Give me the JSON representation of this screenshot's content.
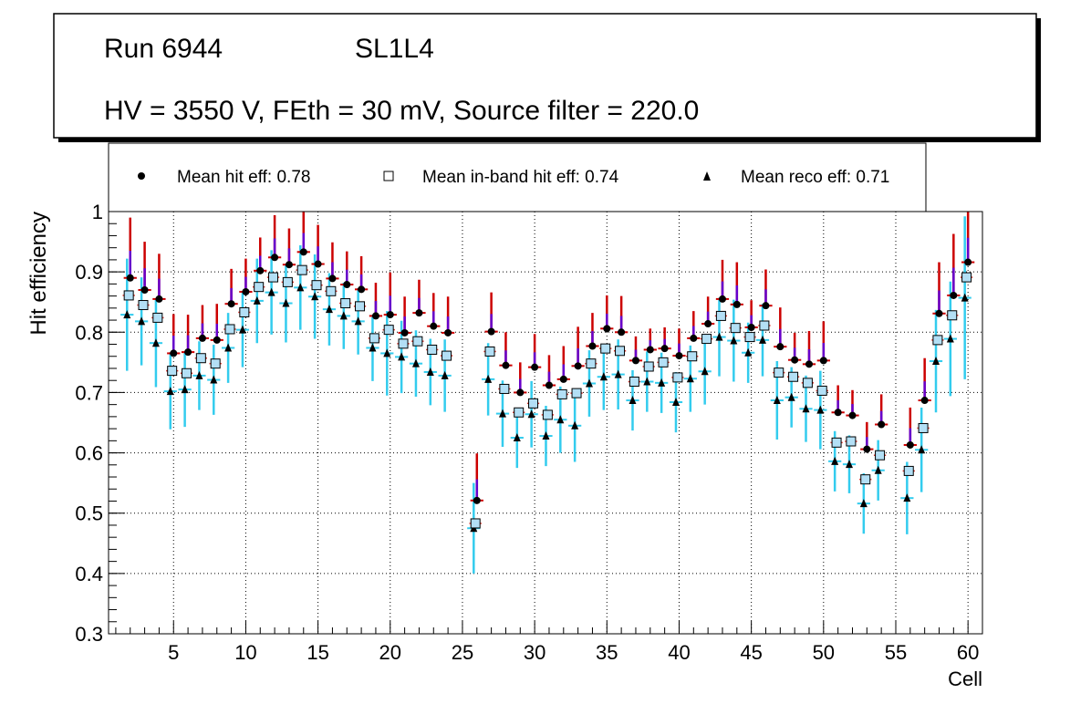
{
  "header": {
    "run": "Run 6944",
    "layer": "SL1L4",
    "conditions": "HV = 3550 V, FEth = 30 mV, Source filter = 220.0"
  },
  "legend": {
    "hit": "Mean hit  eff: 0.78",
    "inband": "Mean in-band hit eff: 0.74",
    "reco": "Mean reco eff: 0.71"
  },
  "colors": {
    "hit_marker": "#000000",
    "hit_err_up": "#cc0000",
    "hit_err_low": "#6600cc",
    "inband_fill": "#b3dff5",
    "inband_err": "#d9322a",
    "reco_err": "#33ccee",
    "reco_marker": "#000000"
  },
  "chart_data": {
    "type": "scatter",
    "title": "",
    "xlabel": "Cell",
    "ylabel": "Hit efficiency",
    "xlim": [
      0.5,
      61
    ],
    "ylim": [
      0.3,
      1.0
    ],
    "xticks": [
      5,
      10,
      15,
      20,
      25,
      30,
      35,
      40,
      45,
      50,
      55,
      60
    ],
    "yticks": [
      0.3,
      0.4,
      0.5,
      0.6,
      0.7,
      0.8,
      0.9,
      1.0
    ],
    "grid": true,
    "legend_position": "top",
    "x": [
      2,
      3,
      4,
      5,
      6,
      7,
      8,
      9,
      10,
      11,
      12,
      13,
      14,
      15,
      16,
      17,
      18,
      19,
      20,
      21,
      22,
      23,
      24,
      25,
      26,
      27,
      28,
      29,
      30,
      31,
      32,
      33,
      34,
      35,
      36,
      37,
      38,
      39,
      40,
      41,
      42,
      43,
      44,
      45,
      46,
      47,
      48,
      49,
      50,
      51,
      52,
      53,
      54,
      55,
      56,
      57,
      58,
      59,
      60
    ],
    "series": [
      {
        "name": "Mean hit eff",
        "marker": "circle",
        "values": [
          0.89,
          0.87,
          0.855,
          0.765,
          0.767,
          0.79,
          0.787,
          0.847,
          0.867,
          0.902,
          0.924,
          0.912,
          0.933,
          0.913,
          0.889,
          0.879,
          0.871,
          0.827,
          0.829,
          0.799,
          0.832,
          0.81,
          0.799,
          null,
          0.521,
          0.801,
          0.745,
          0.7,
          0.742,
          0.712,
          0.722,
          0.744,
          0.777,
          0.806,
          0.8,
          0.753,
          0.771,
          0.773,
          0.761,
          0.79,
          0.814,
          0.855,
          0.846,
          0.808,
          0.844,
          0.776,
          0.754,
          0.747,
          0.753,
          0.667,
          0.662,
          0.606,
          0.647,
          null,
          0.613,
          0.687,
          0.831,
          0.861,
          0.916
        ],
        "err_up": [
          0.1,
          0.08,
          0.075,
          0.065,
          0.062,
          0.055,
          0.06,
          0.058,
          0.055,
          0.055,
          0.07,
          0.06,
          0.07,
          0.065,
          0.06,
          0.055,
          0.055,
          0.055,
          0.07,
          0.06,
          0.055,
          0.055,
          0.06,
          null,
          0.078,
          0.065,
          0.055,
          0.05,
          0.055,
          0.05,
          0.055,
          0.065,
          0.055,
          0.055,
          0.06,
          0.04,
          0.035,
          0.035,
          0.045,
          0.045,
          0.045,
          0.065,
          0.07,
          0.045,
          0.06,
          0.065,
          0.045,
          0.055,
          0.065,
          0.045,
          0.042,
          0.045,
          0.05,
          null,
          0.062,
          0.07,
          0.085,
          0.102,
          0.09
        ],
        "err_low": [
          0.025,
          0.025,
          0.025,
          0.025,
          0.025,
          0.025,
          0.025,
          0.025,
          0.025,
          0.025,
          0.025,
          0.025,
          0.025,
          0.025,
          0.025,
          0.025,
          0.025,
          0.025,
          0.025,
          0.025,
          0.025,
          0.025,
          0.025,
          null,
          0.025,
          0.025,
          0.025,
          0.025,
          0.025,
          0.025,
          0.025,
          0.025,
          0.025,
          0.025,
          0.025,
          0.025,
          0.025,
          0.025,
          0.025,
          0.025,
          0.025,
          0.025,
          0.025,
          0.025,
          0.025,
          0.025,
          0.025,
          0.025,
          0.025,
          0.025,
          0.025,
          0.025,
          0.025,
          null,
          0.025,
          0.025,
          0.025,
          0.025,
          0.025
        ]
      },
      {
        "name": "Mean in-band hit eff",
        "marker": "open-square",
        "values": [
          0.861,
          0.845,
          0.824,
          0.736,
          0.732,
          0.757,
          0.748,
          0.805,
          0.833,
          0.875,
          0.891,
          0.883,
          0.903,
          0.878,
          0.868,
          0.848,
          0.843,
          0.79,
          0.804,
          0.781,
          0.785,
          0.771,
          0.761,
          null,
          0.483,
          0.768,
          0.706,
          0.667,
          0.682,
          0.663,
          0.697,
          0.699,
          0.748,
          0.773,
          0.769,
          0.718,
          0.743,
          0.75,
          0.725,
          0.76,
          0.789,
          0.827,
          0.807,
          0.792,
          0.811,
          0.733,
          0.726,
          0.716,
          0.703,
          0.617,
          0.619,
          0.556,
          0.596,
          null,
          0.57,
          0.641,
          0.787,
          0.828,
          0.891
        ],
        "err_up": [
          0.035,
          0.035,
          0.035,
          0.035,
          0.035,
          0.035,
          0.035,
          0.035,
          0.035,
          0.035,
          0.035,
          0.035,
          0.035,
          0.035,
          0.035,
          0.035,
          0.035,
          0.035,
          0.035,
          0.035,
          0.035,
          0.035,
          0.035,
          null,
          0.035,
          0.035,
          0.035,
          0.035,
          0.035,
          0.035,
          0.035,
          0.035,
          0.035,
          0.035,
          0.035,
          0.035,
          0.035,
          0.035,
          0.035,
          0.035,
          0.035,
          0.035,
          0.035,
          0.035,
          0.035,
          0.035,
          0.035,
          0.035,
          0.035,
          0.035,
          0.035,
          0.035,
          0.035,
          null,
          0.035,
          0.035,
          0.035,
          0.035,
          0.035
        ]
      },
      {
        "name": "Mean reco eff",
        "marker": "triangle",
        "values": [
          0.829,
          0.818,
          0.782,
          0.702,
          0.705,
          0.728,
          0.721,
          0.774,
          0.804,
          0.852,
          0.866,
          0.848,
          0.874,
          0.859,
          0.838,
          0.827,
          0.818,
          0.774,
          0.765,
          0.759,
          0.748,
          0.734,
          0.728,
          null,
          0.475,
          0.722,
          0.665,
          0.625,
          0.664,
          0.628,
          0.655,
          0.645,
          0.715,
          0.726,
          0.73,
          0.687,
          0.718,
          0.716,
          0.684,
          0.723,
          0.735,
          0.792,
          0.786,
          0.766,
          0.787,
          0.687,
          0.692,
          0.673,
          0.671,
          0.586,
          0.581,
          0.516,
          0.571,
          null,
          0.525,
          0.605,
          0.752,
          0.789,
          0.857
        ],
        "err": [
          0.093,
          0.073,
          0.073,
          0.063,
          0.062,
          0.057,
          0.058,
          0.058,
          0.062,
          0.07,
          0.07,
          0.065,
          0.07,
          0.07,
          0.06,
          0.055,
          0.055,
          0.055,
          0.07,
          0.06,
          0.055,
          0.055,
          0.06,
          null,
          0.075,
          0.06,
          0.055,
          0.05,
          0.055,
          0.05,
          0.055,
          0.06,
          0.055,
          0.055,
          0.058,
          0.05,
          0.05,
          0.05,
          0.05,
          0.055,
          0.055,
          0.065,
          0.068,
          0.05,
          0.06,
          0.065,
          0.05,
          0.055,
          0.065,
          0.05,
          0.048,
          0.05,
          0.05,
          null,
          0.06,
          0.07,
          0.085,
          0.095,
          0.135
        ]
      }
    ]
  }
}
